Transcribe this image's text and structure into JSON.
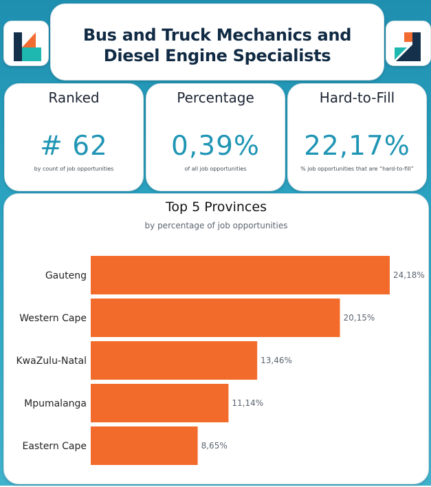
{
  "header": {
    "title_line1": "Bus and Truck Mechanics and",
    "title_line2": "Diesel Engine Specialists"
  },
  "logos": {
    "colors": {
      "navy": "#15304a",
      "teal": "#1fb8b0",
      "orange": "#f26b30"
    }
  },
  "kpis": [
    {
      "label": "Ranked",
      "value": "# 62",
      "sub": "by count of job opportunities"
    },
    {
      "label": "Percentage",
      "value": "0,39%",
      "sub": "of all job opportunities"
    },
    {
      "label": "Hard-to-Fill",
      "value": "22,17%",
      "sub": "% job opportunities that are “hard-to-fill”"
    }
  ],
  "chart_data": {
    "type": "bar",
    "orientation": "horizontal",
    "title": "Top 5 Provinces",
    "subtitle": "by percentage of job opportunities",
    "categories": [
      "Gauteng",
      "Western Cape",
      "KwaZulu-Natal",
      "Mpumalanga",
      "Eastern Cape"
    ],
    "values": [
      24.18,
      20.15,
      13.46,
      11.14,
      8.65
    ],
    "value_labels": [
      "24,18%",
      "20,15%",
      "13,46%",
      "11,14%",
      "8,65%"
    ],
    "bar_color": "#f26b2a",
    "xlim": [
      0,
      24.18
    ],
    "grid": false,
    "legend": "none"
  }
}
